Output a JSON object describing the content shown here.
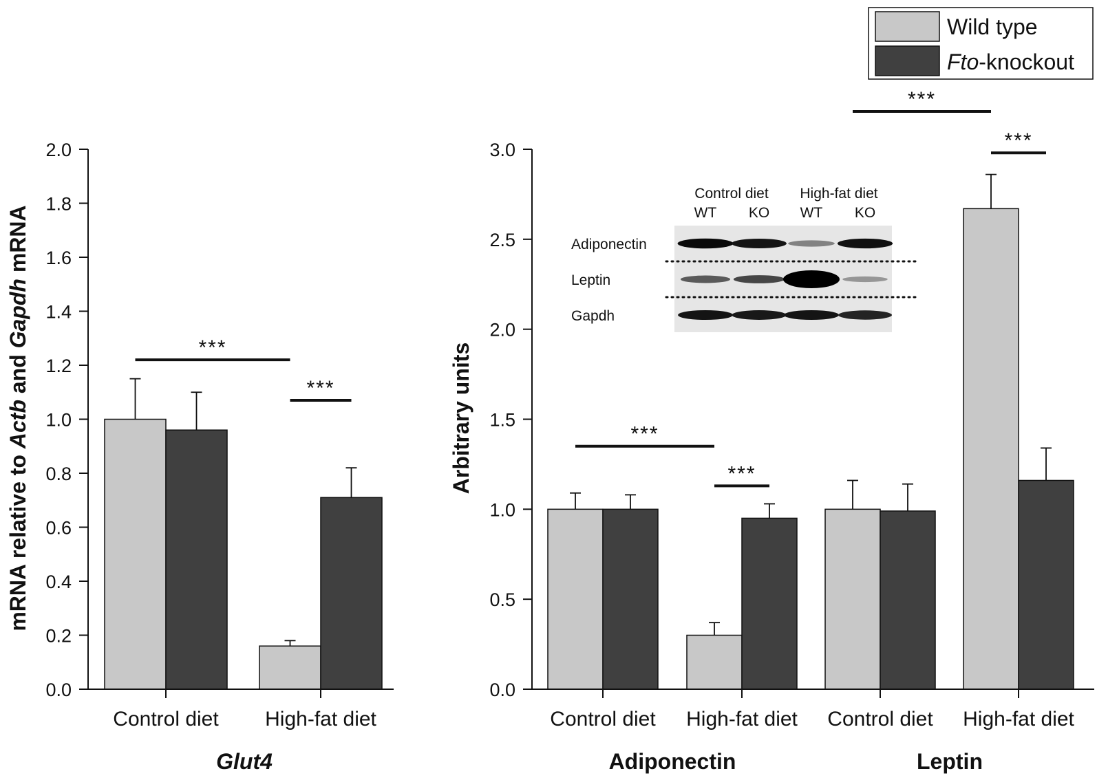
{
  "legend": {
    "wild_type": "Wild type",
    "knockout_italic": "Fto",
    "knockout_rest": "-knockout"
  },
  "colors": {
    "wild_type": "#c8c8c8",
    "knockout": "#404040",
    "axis": "#111111"
  },
  "chart_data": [
    {
      "type": "bar",
      "panel": "left",
      "title": "Glut4",
      "ylabel_parts": [
        "mRNA relative to ",
        "Actb",
        " and ",
        "Gapdh",
        " mRNA"
      ],
      "ylim": [
        0,
        2.0
      ],
      "yticks": [
        "0.0",
        "0.2",
        "0.4",
        "0.6",
        "0.8",
        "1.0",
        "1.2",
        "1.4",
        "1.6",
        "1.8",
        "2.0"
      ],
      "categories": [
        "Control diet",
        "High-fat diet"
      ],
      "series": [
        {
          "name": "Wild type",
          "values": [
            1.0,
            0.16
          ],
          "errors": [
            0.15,
            0.02
          ]
        },
        {
          "name": "Fto-knockout",
          "values": [
            0.96,
            0.71
          ],
          "errors": [
            0.14,
            0.11
          ]
        }
      ],
      "significance": [
        {
          "label": "***",
          "from": "Control diet WT",
          "to": "High-fat diet WT",
          "level": 1.22
        },
        {
          "label": "***",
          "from": "High-fat diet WT",
          "to": "High-fat diet KO",
          "level": 1.07
        }
      ]
    },
    {
      "type": "bar",
      "panel": "right",
      "ylabel": "Arbitrary units",
      "ylim": [
        0,
        3.0
      ],
      "yticks": [
        "0.0",
        "0.5",
        "1.0",
        "1.5",
        "2.0",
        "2.5",
        "3.0"
      ],
      "groups": [
        "Adiponectin",
        "Leptin"
      ],
      "categories": [
        "Control diet",
        "High-fat diet",
        "Control diet",
        "High-fat diet"
      ],
      "series": [
        {
          "name": "Wild type",
          "values": [
            1.0,
            0.3,
            1.0,
            2.67
          ],
          "errors": [
            0.09,
            0.07,
            0.16,
            0.19
          ]
        },
        {
          "name": "Fto-knockout",
          "values": [
            1.0,
            0.95,
            0.99,
            1.16
          ],
          "errors": [
            0.08,
            0.08,
            0.15,
            0.18
          ]
        }
      ],
      "significance": [
        {
          "label": "***",
          "from": "Adiponectin Control WT",
          "to": "Adiponectin High-fat WT",
          "level": 1.35
        },
        {
          "label": "***",
          "from": "Adiponectin High-fat WT",
          "to": "Adiponectin High-fat KO",
          "level": 1.13
        },
        {
          "label": "***",
          "from": "Leptin Control WT",
          "to": "Leptin High-fat WT",
          "level": 3.21
        },
        {
          "label": "***",
          "from": "Leptin High-fat WT",
          "to": "Leptin High-fat KO",
          "level": 2.98
        }
      ]
    }
  ],
  "blot": {
    "conditions": [
      "Control diet",
      "High-fat diet"
    ],
    "lanes": [
      "WT",
      "KO",
      "WT",
      "KO"
    ],
    "rows": [
      "Adiponectin",
      "Leptin",
      "Gapdh"
    ],
    "intensities": [
      [
        0.95,
        0.9,
        0.35,
        0.92
      ],
      [
        0.55,
        0.65,
        1.0,
        0.25
      ],
      [
        0.9,
        0.88,
        0.9,
        0.82
      ]
    ]
  }
}
